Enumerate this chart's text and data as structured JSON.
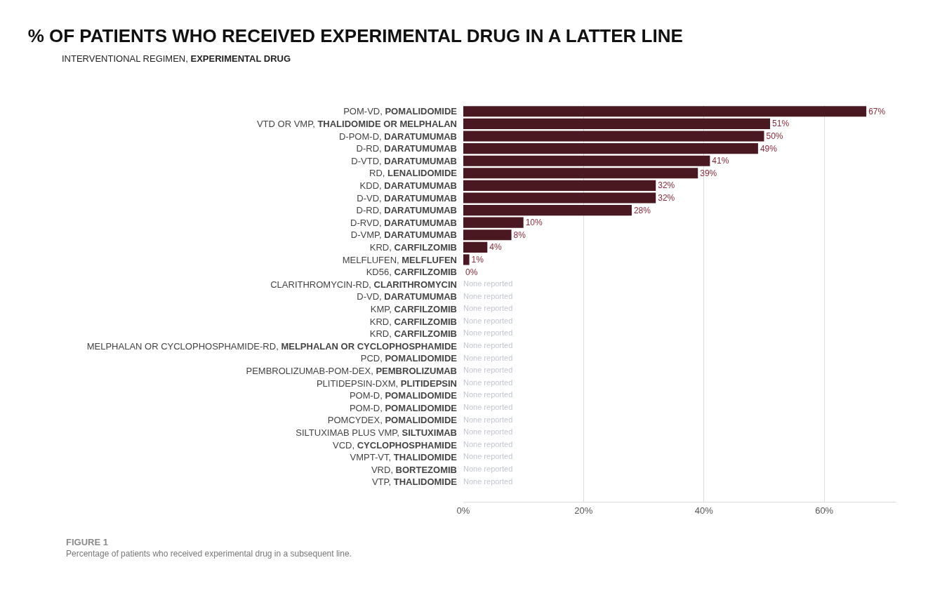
{
  "chart_data": {
    "type": "bar",
    "orientation": "horizontal",
    "title": "% OF PATIENTS WHO RECEIVED EXPERIMENTAL DRUG IN A LATTER LINE",
    "subtitle": "INTERVENTIONAL REGIMEN, EXPERIMENTAL DRUG",
    "categories": [
      "POM-VD, POMALIDOMIDE",
      "VTD OR VMP, THALIDOMIDE OR MELPHALAN",
      "D-POM-D, DARATUMUMAB",
      "D-RD, DARATUMUMAB",
      "D-VTD, DARATUMUMAB",
      "RD, LENALIDOMIDE",
      "KDD, DARATUMUMAB",
      "D-VD, DARATUMUMAB",
      "D-RD, DARATUMUMAB",
      "D-RVD, DARATUMUMAB",
      "D-VMP, DARATUMUMAB",
      "KRD, CARFILZOMIB",
      "MELFLUFEN, MELFLUFEN",
      "KD56, CARFILZOMIB",
      "CLARITHROMYCIN-RD, CLARITHROMYCIN",
      "D-VD, DARATUMUMAB",
      "KMP, CARFILZOMIB",
      "KRD, CARFILZOMIB",
      "KRD, CARFILZOMIB",
      "MELPHALAN OR CYCLOPHOSPHAMIDE-RD, MELPHALAN OR CYCLOPHOSPHAMIDE",
      "PCD, POMALIDOMIDE",
      "PEMBROLIZUMAB-POM-DEX, PEMBROLIZUMAB",
      "PLITIDEPSIN-DXM, PLITIDEPSIN",
      "POM-D, POMALIDOMIDE",
      "POM-D, POMALIDOMIDE",
      "POMCYDEX, POMALIDOMIDE",
      "SILTUXIMAB PLUS VMP, SILTUXIMAB",
      "VCD, CYCLOPHOSPHAMIDE",
      "VMPT-VT, THALIDOMIDE",
      "VRD, BORTEZOMIB",
      "VTP, THALIDOMIDE"
    ],
    "values": [
      67,
      51,
      50,
      49,
      41,
      39,
      32,
      32,
      28,
      10,
      8,
      4,
      1,
      0,
      null,
      null,
      null,
      null,
      null,
      null,
      null,
      null,
      null,
      null,
      null,
      null,
      null,
      null,
      null,
      null,
      null
    ],
    "value_labels": [
      "67%",
      "51%",
      "50%",
      "49%",
      "41%",
      "39%",
      "32%",
      "32%",
      "28%",
      "10%",
      "8%",
      "4%",
      "1%",
      "0%",
      "None reported",
      "None reported",
      "None reported",
      "None reported",
      "None reported",
      "None reported",
      "None reported",
      "None reported",
      "None reported",
      "None reported",
      "None reported",
      "None reported",
      "None reported",
      "None reported",
      "None reported",
      "None reported",
      "None reported"
    ],
    "color": "#4a1820",
    "xlim": [
      0,
      72
    ],
    "xticks": [
      {
        "value": 0,
        "label": "0%"
      },
      {
        "value": 20,
        "label": "20%"
      },
      {
        "value": 40,
        "label": "40%"
      },
      {
        "value": 60,
        "label": "60%"
      }
    ],
    "grid": "x",
    "annotations": [
      "FIGURE 1",
      "Percentage of patients who received experimental drug in a subsequent line."
    ]
  }
}
